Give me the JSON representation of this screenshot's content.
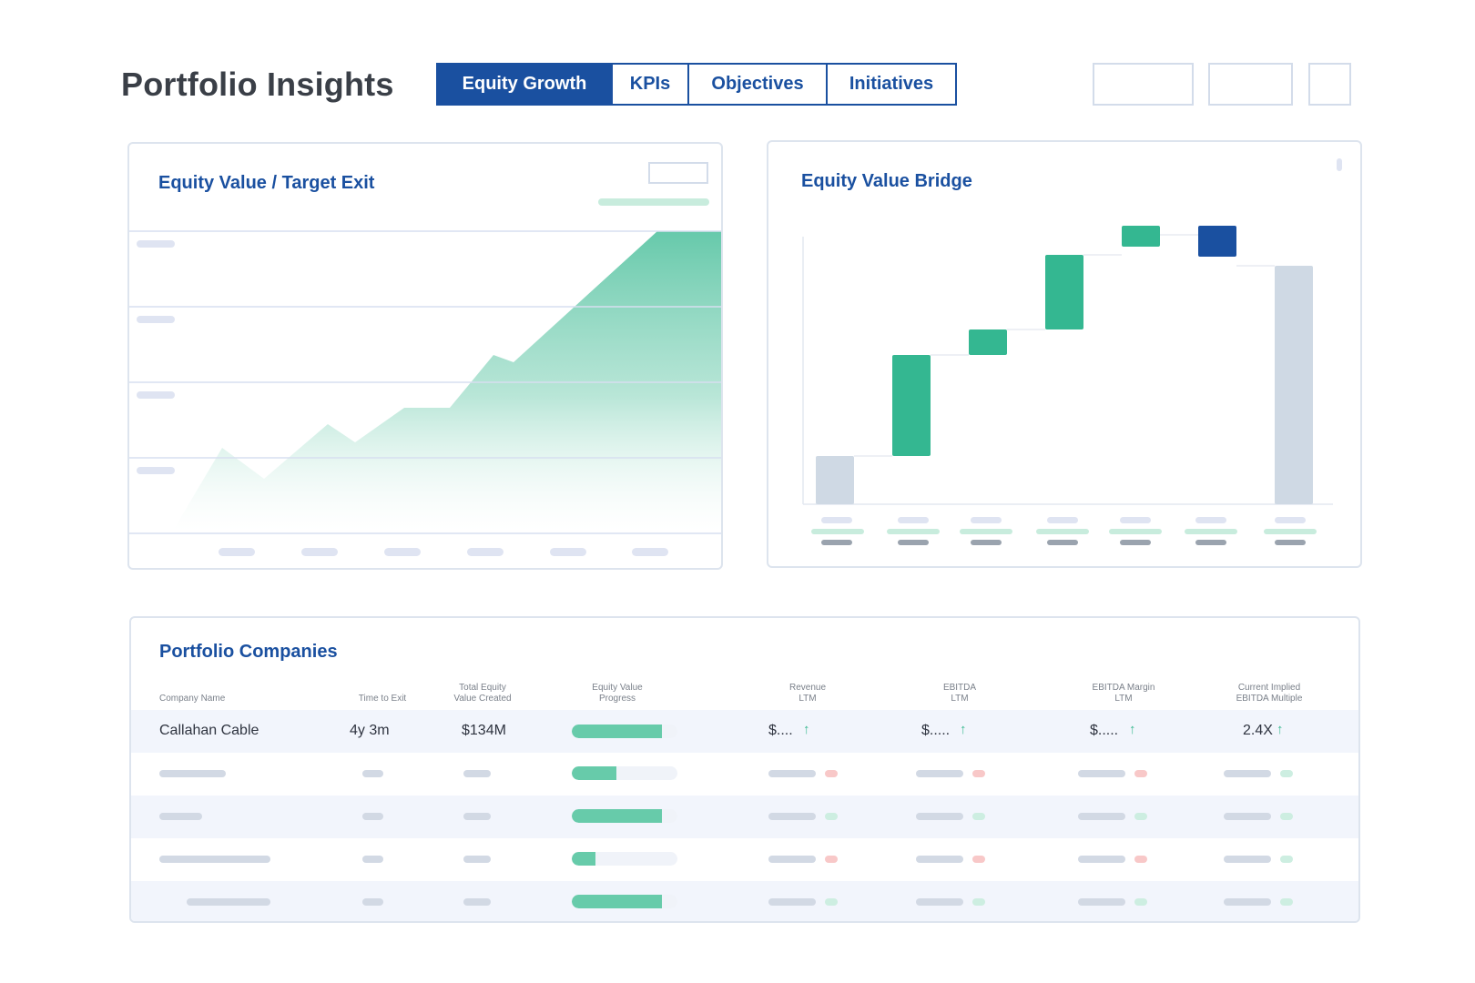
{
  "header": {
    "title": "Portfolio Insights",
    "tabs": [
      {
        "label": "Equity Growth",
        "active": true
      },
      {
        "label": "KPIs",
        "active": false
      },
      {
        "label": "Objectives",
        "active": false
      },
      {
        "label": "Initiatives",
        "active": false
      }
    ]
  },
  "equity_chart": {
    "title": "Equity Value / Target Exit"
  },
  "bridge_chart": {
    "title": "Equity Value Bridge"
  },
  "companies": {
    "title": "Portfolio Companies",
    "columns": [
      [
        "Company Name"
      ],
      [
        "Time to Exit"
      ],
      [
        "Total Equity",
        "Value Created"
      ],
      [
        "Equity Value",
        "Progress"
      ],
      [
        "Revenue",
        "LTM"
      ],
      [
        "EBITDA",
        "LTM"
      ],
      [
        "EBITDA Margin",
        "LTM"
      ],
      [
        "Current Implied",
        "EBITDA Multiple"
      ]
    ],
    "first_row": {
      "company": "Callahan Cable",
      "time_to_exit": "4y 3m",
      "value_created": "$134M",
      "progress": 0.85,
      "revenue": "$....",
      "ebitda": "$.....",
      "margin": "$.....",
      "multiple": "2.4X"
    },
    "placeholder_progress": [
      0.42,
      0.85,
      0.22,
      0.85
    ]
  },
  "colors": {
    "brand_blue": "#1a50a0",
    "green": "#34b791",
    "gray_bar": "#cfd9e4"
  }
}
